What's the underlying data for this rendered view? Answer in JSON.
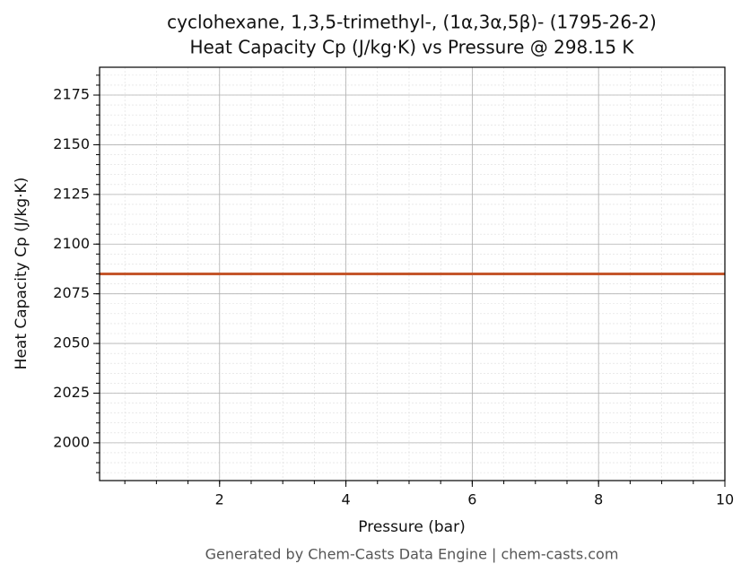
{
  "chart_data": {
    "type": "line",
    "title": "cyclohexane, 1,3,5-trimethyl-, (1α,3α,5β)- (1795-26-2)",
    "subtitle": "Heat Capacity Cp (J/kg·K) vs Pressure @ 298.15 K",
    "x_label": "Pressure (bar)",
    "y_label": "Heat Capacity Cp (J/kg·K)",
    "footer": "Generated by Chem-Casts Data Engine | chem-casts.com",
    "x": [
      0.1,
      10
    ],
    "series": [
      {
        "name": "Cp",
        "color": "#c4562b",
        "values": [
          2085,
          2085
        ]
      }
    ],
    "xlim": [
      0.1,
      10
    ],
    "ylim": [
      1981,
      2189
    ],
    "xticks": [
      2,
      4,
      6,
      8,
      10
    ],
    "yticks": [
      2000,
      2025,
      2050,
      2075,
      2100,
      2125,
      2150,
      2175
    ],
    "grid": true,
    "minor_grid": true
  }
}
